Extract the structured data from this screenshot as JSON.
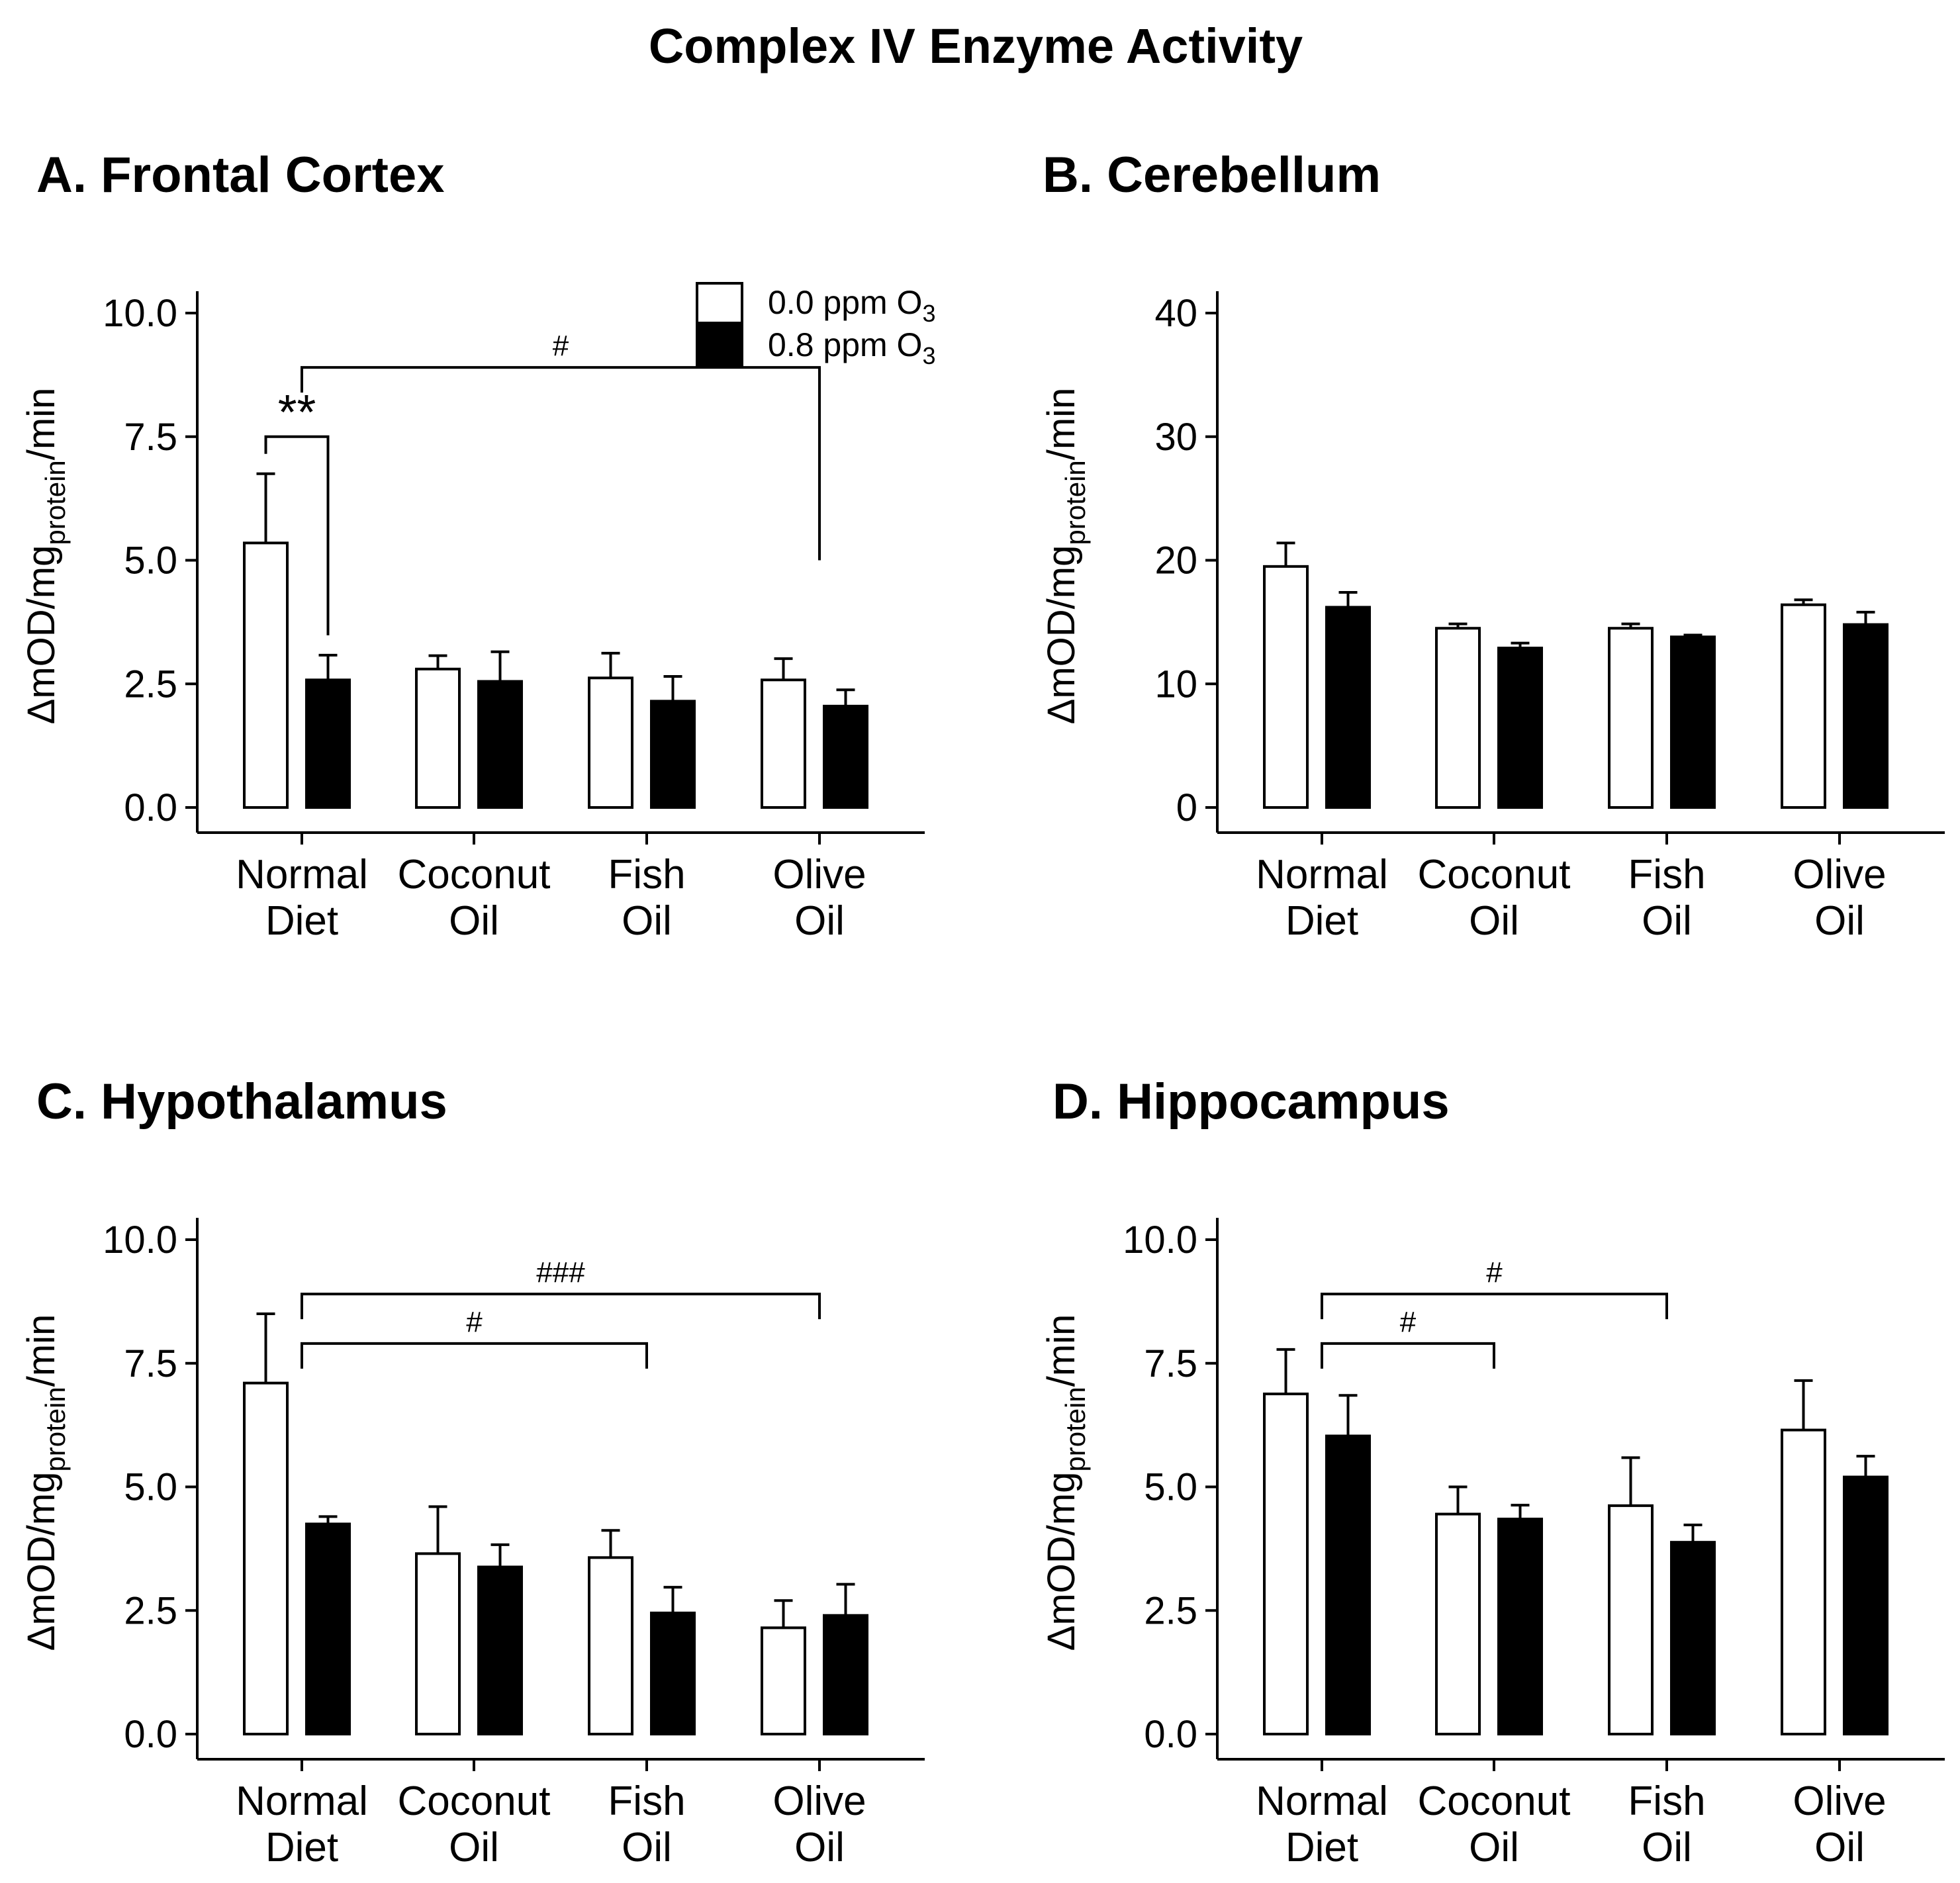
{
  "chart_data": {
    "title": "Complex IV Enzyme Activity",
    "type": "bar",
    "categories": [
      [
        "Normal",
        "Diet"
      ],
      [
        "Coconut",
        "Oil"
      ],
      [
        "Fish",
        "Oil"
      ],
      [
        "Olive",
        "Oil"
      ]
    ],
    "ylabel": {
      "prefix": "ΔmOD/mg",
      "subscript": "protein",
      "suffix": "/min"
    },
    "legend": [
      {
        "label": "0.0 ppm O",
        "subscript": "3",
        "color": "#ffffff"
      },
      {
        "label": "0.8 ppm O",
        "subscript": "3",
        "color": "#000000"
      }
    ],
    "legend_location": "top-right (panel A)",
    "panels": [
      {
        "id": "A",
        "title": "A. Frontal Cortex",
        "ylim": [
          0,
          10
        ],
        "yticks": [
          "0.0",
          "2.5",
          "5.0",
          "7.5",
          "10.0"
        ],
        "tick_values": [
          0,
          2.5,
          5,
          7.5,
          10
        ],
        "series": [
          {
            "name": "0.0 ppm O3",
            "values": [
              5.35,
              2.8,
              2.62,
              2.58
            ],
            "errors": [
              1.4,
              0.27,
              0.5,
              0.43
            ]
          },
          {
            "name": "0.8 ppm O3",
            "values": [
              2.58,
              2.55,
              2.15,
              2.05
            ],
            "errors": [
              0.5,
              0.6,
              0.5,
              0.33
            ]
          }
        ],
        "significance": [
          {
            "label": "**",
            "type": "within",
            "group": 0,
            "level": 7.5
          },
          {
            "label": "#",
            "type": "between",
            "from": 0,
            "to": 3,
            "level": 8.9,
            "drop_to": 5.0
          }
        ]
      },
      {
        "id": "B",
        "title": "B. Cerebellum",
        "ylim": [
          0,
          40
        ],
        "yticks": [
          "0",
          "10",
          "20",
          "30",
          "40"
        ],
        "tick_values": [
          0,
          10,
          20,
          30,
          40
        ],
        "series": [
          {
            "name": "0.0 ppm O3",
            "values": [
              19.5,
              14.5,
              14.5,
              16.4
            ],
            "errors": [
              1.9,
              0.35,
              0.35,
              0.4
            ]
          },
          {
            "name": "0.8 ppm O3",
            "values": [
              16.2,
              12.9,
              13.8,
              14.8
            ],
            "errors": [
              1.2,
              0.4,
              0.15,
              1.0
            ]
          }
        ],
        "significance": []
      },
      {
        "id": "C",
        "title": "C. Hypothalamus",
        "ylim": [
          0,
          10
        ],
        "yticks": [
          "0.0",
          "2.5",
          "5.0",
          "7.5",
          "10.0"
        ],
        "tick_values": [
          0,
          2.5,
          5,
          7.5,
          10
        ],
        "series": [
          {
            "name": "0.0 ppm O3",
            "values": [
              7.1,
              3.65,
              3.57,
              2.15
            ],
            "errors": [
              1.4,
              0.95,
              0.55,
              0.55
            ]
          },
          {
            "name": "0.8 ppm O3",
            "values": [
              4.25,
              3.38,
              2.45,
              2.4
            ],
            "errors": [
              0.15,
              0.45,
              0.52,
              0.63
            ]
          }
        ],
        "significance": [
          {
            "label": "#",
            "type": "between",
            "from": 0,
            "to": 2,
            "level": 7.9
          },
          {
            "label": "###",
            "type": "between",
            "from": 0,
            "to": 3,
            "level": 8.9
          }
        ]
      },
      {
        "id": "D",
        "title": "D. Hippocampus",
        "ylim": [
          0,
          10
        ],
        "yticks": [
          "0.0",
          "2.5",
          "5.0",
          "7.5",
          "10.0"
        ],
        "tick_values": [
          0,
          2.5,
          5,
          7.5,
          10
        ],
        "series": [
          {
            "name": "0.0 ppm O3",
            "values": [
              6.88,
              4.45,
              4.62,
              6.15
            ],
            "errors": [
              0.9,
              0.55,
              0.97,
              1.0
            ]
          },
          {
            "name": "0.8 ppm O3",
            "values": [
              6.03,
              4.35,
              3.88,
              5.2
            ],
            "errors": [
              0.82,
              0.28,
              0.35,
              0.42
            ]
          }
        ],
        "significance": [
          {
            "label": "#",
            "type": "between",
            "from": 0,
            "to": 1,
            "level": 7.9
          },
          {
            "label": "#",
            "type": "between",
            "from": 0,
            "to": 2,
            "level": 8.9
          }
        ]
      }
    ]
  }
}
